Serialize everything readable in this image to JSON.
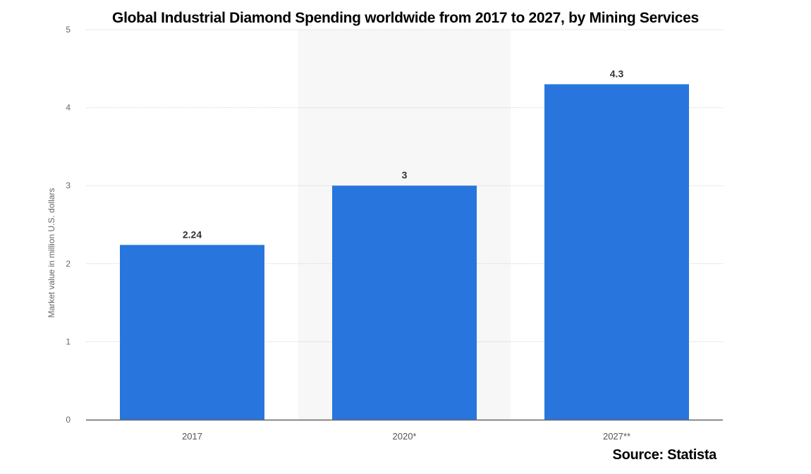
{
  "chart_data": {
    "type": "bar",
    "title": "Global Industrial Diamond Spending worldwide from 2017 to 2027, by Mining Services",
    "categories": [
      "2017",
      "2020*",
      "2027**"
    ],
    "values": [
      2.24,
      3,
      4.3
    ],
    "data_labels": [
      "2.24",
      "3",
      "4.3"
    ],
    "xlabel": "",
    "ylabel": "Market value in million U.S. dollars",
    "ylim": [
      0,
      5
    ],
    "yticks": [
      "0",
      "1",
      "2",
      "3",
      "4",
      "5"
    ],
    "grid": true,
    "highlighted_category": "2020*",
    "bar_color": "#2876dd",
    "source": "Source: Statista"
  }
}
